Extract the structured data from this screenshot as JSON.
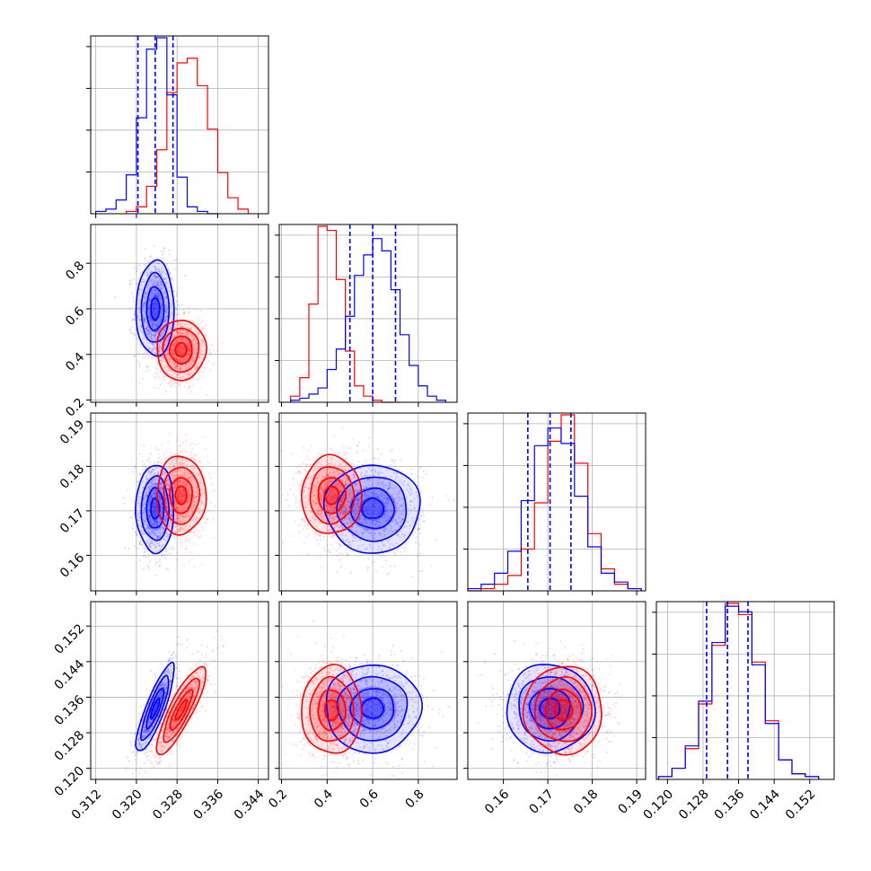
{
  "chart_data": {
    "type": "corner",
    "parameters": 4,
    "colors": {
      "series_a": "#0000ff",
      "series_b": "#ff0000"
    },
    "grid": true,
    "axes_ticks": [
      {
        "ticks": [
          0.312,
          0.32,
          0.328,
          0.336,
          0.344
        ],
        "labels": [
          "0.312",
          "0.320",
          "0.328",
          "0.336",
          "0.344"
        ],
        "range": [
          0.311,
          0.346
        ]
      },
      {
        "ticks": [
          0.2,
          0.4,
          0.6,
          0.8
        ],
        "labels": [
          "0.2",
          "0.4",
          "0.6",
          "0.8"
        ],
        "range": [
          0.19,
          0.97
        ]
      },
      {
        "ticks": [
          0.16,
          0.17,
          0.18,
          0.19
        ],
        "labels": [
          "0.16",
          "0.17",
          "0.18",
          "0.19"
        ],
        "range": [
          0.152,
          0.192
        ]
      },
      {
        "ticks": [
          0.12,
          0.128,
          0.136,
          0.144,
          0.152
        ],
        "labels": [
          "0.120",
          "0.128",
          "0.136",
          "0.144",
          "0.152"
        ],
        "range": [
          0.1175,
          0.1575
        ]
      }
    ],
    "series": [
      {
        "color": "#0000ff",
        "mean": [
          0.3237,
          0.6,
          0.1705,
          0.1335
        ],
        "std": [
          0.0017,
          0.095,
          0.0045,
          0.0045
        ],
        "quantiles_16_50_84": [
          [
            0.3203,
            0.3237,
            0.3272
          ],
          [
            0.5,
            0.6,
            0.7
          ],
          [
            0.1655,
            0.1705,
            0.1752
          ],
          [
            0.1288,
            0.1335,
            0.1381
          ]
        ],
        "hist_bin_edges": [
          [
            0.312,
            0.314,
            0.316,
            0.318,
            0.32,
            0.322,
            0.324,
            0.326,
            0.328,
            0.33,
            0.332,
            0.334,
            0.336
          ],
          [
            0.24,
            0.28,
            0.32,
            0.36,
            0.4,
            0.44,
            0.48,
            0.52,
            0.56,
            0.6,
            0.64,
            0.68,
            0.72,
            0.76,
            0.8,
            0.84,
            0.88,
            0.92
          ],
          [
            0.152,
            0.155,
            0.158,
            0.161,
            0.164,
            0.167,
            0.17,
            0.173,
            0.176,
            0.179,
            0.182,
            0.185,
            0.188,
            0.191
          ],
          [
            0.118,
            0.121,
            0.124,
            0.127,
            0.13,
            0.133,
            0.136,
            0.139,
            0.142,
            0.145,
            0.148,
            0.151,
            0.154
          ]
        ],
        "hist_counts": [
          [
            1,
            2,
            6,
            17,
            42,
            72,
            77,
            52,
            16,
            3,
            1,
            0
          ],
          [
            1,
            2,
            4,
            7,
            16,
            26,
            42,
            62,
            72,
            80,
            74,
            55,
            33,
            18,
            8,
            3,
            1
          ],
          [
            1,
            3,
            8,
            18,
            41,
            66,
            74,
            67,
            43,
            20,
            8,
            4,
            1
          ],
          [
            1,
            4,
            12,
            28,
            49,
            62,
            60,
            41,
            20,
            7,
            2,
            1
          ]
        ]
      },
      {
        "color": "#ff0000",
        "mean": [
          0.3288,
          0.42,
          0.1735,
          0.1331
        ],
        "std": [
          0.0022,
          0.06,
          0.004,
          0.0045
        ],
        "hist_bin_edges": [
          [
            0.318,
            0.32,
            0.322,
            0.324,
            0.326,
            0.328,
            0.33,
            0.332,
            0.334,
            0.336,
            0.338,
            0.34,
            0.342
          ],
          [
            0.24,
            0.28,
            0.32,
            0.36,
            0.4,
            0.44,
            0.48,
            0.52,
            0.56,
            0.6,
            0.64,
            0.68,
            0.72
          ],
          [
            0.152,
            0.155,
            0.158,
            0.161,
            0.164,
            0.167,
            0.17,
            0.173,
            0.176,
            0.179,
            0.182,
            0.185,
            0.188,
            0.191
          ],
          [
            0.118,
            0.121,
            0.124,
            0.127,
            0.13,
            0.133,
            0.136,
            0.139,
            0.142,
            0.145,
            0.148,
            0.151,
            0.154
          ]
        ],
        "hist_counts": [
          [
            1,
            3,
            12,
            28,
            53,
            66,
            68,
            56,
            37,
            18,
            7,
            2
          ],
          [
            3,
            12,
            48,
            86,
            84,
            60,
            25,
            8,
            3,
            1,
            0,
            0
          ],
          [
            0,
            1,
            3,
            7,
            19,
            40,
            68,
            80,
            58,
            26,
            10,
            3,
            1
          ],
          [
            1,
            4,
            11,
            27,
            48,
            63,
            59,
            42,
            21,
            7,
            2,
            1
          ]
        ]
      }
    ],
    "correlations": {
      "1-0": 0.0,
      "2-0": 0.0,
      "2-1": 0.0,
      "3-0": 0.85,
      "3-1": 0.0,
      "3-2": 0.0
    }
  }
}
